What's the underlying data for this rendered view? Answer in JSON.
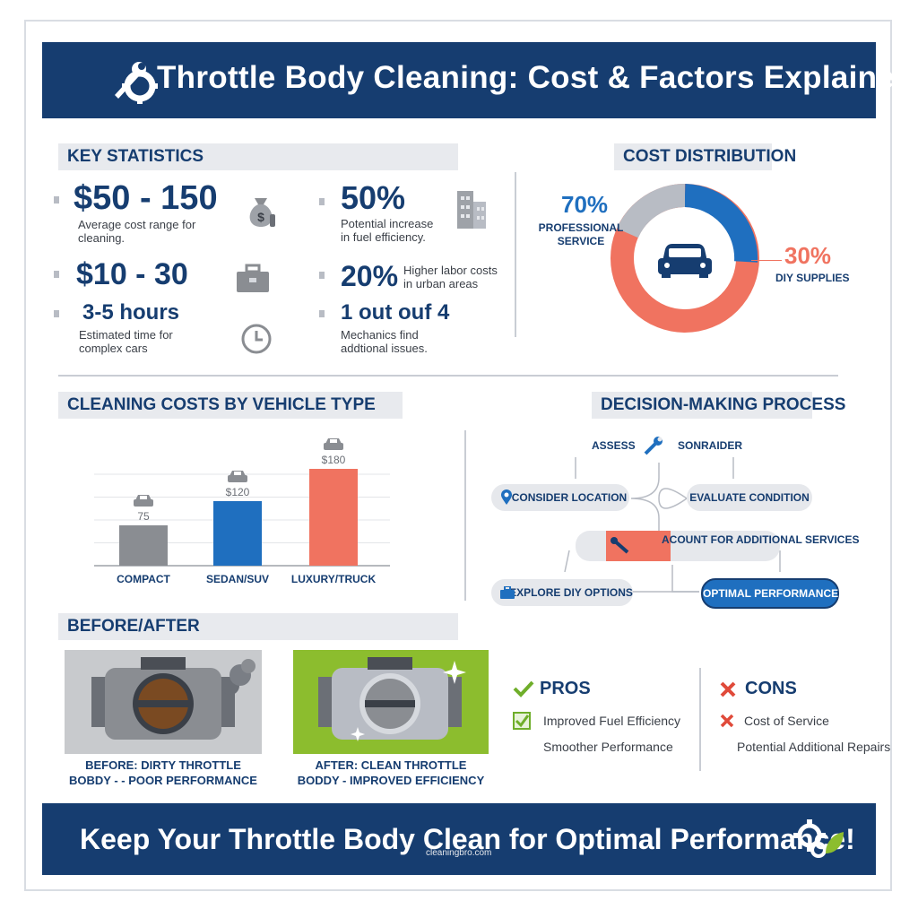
{
  "header": {
    "title": "Throttle Body Cleaning: Cost & Factors Explained!"
  },
  "key_statistics": {
    "label": "KEY STATISTICS",
    "items": [
      {
        "value": "$50 - 150",
        "desc": "Average cost range for cleaning.",
        "icon": "money-bag-icon"
      },
      {
        "value": "$10 - 30",
        "desc": "",
        "icon": "toolbox-icon"
      },
      {
        "value": "3-5 hours",
        "desc": "Estimated time for complex cars",
        "icon": "clock-icon"
      },
      {
        "value": "50%",
        "desc": "Potential increase in fuel efficiency.",
        "icon": "building-icon"
      },
      {
        "value": "20%",
        "desc": "Higher labor costs in urban areas"
      },
      {
        "value": "1 out ouf 4",
        "desc": "Mechanics find addtional issues."
      }
    ]
  },
  "cost_distribution": {
    "label": "COST DISTRIBUTION",
    "professional_pct": "70%",
    "professional_label": "PROFESSIONAL SERVICE",
    "diy_pct": "30%",
    "diy_label": "DIY SUPPLIES"
  },
  "chart_data": {
    "type": "bar",
    "title": "CLEANING COSTS BY VEHICLE TYPE",
    "categories": [
      "COMPACT",
      "SEDAN/SUV",
      "LUXURY/TRUCK"
    ],
    "values": [
      75,
      120,
      180
    ],
    "value_labels": [
      "75",
      "$120",
      "$180"
    ],
    "colors": [
      "#8a8d92",
      "#1f6fbf",
      "#f07360"
    ],
    "ylim": [
      0,
      200
    ],
    "grid": true
  },
  "decision": {
    "label": "DECISION-MAKING PROCESS",
    "assess": "ASSESS",
    "consider": "SONRAIDER",
    "location": "CONSIDER LOCATION",
    "evaluate": "EVALUATE CONDITION",
    "account": "ACOUNT FOR ADDITIONAL SERVICES",
    "explore": "EXPLORE DIY OPTIONS",
    "optimal": "OPTIMAL PERFORMANCE"
  },
  "before_after": {
    "label": "BEFORE/AFTER",
    "before_caption": "BEFORE: DIRTY THROTTLE BOBDY - - POOR PERFORMANCE",
    "after_caption": "AFTER: CLEAN THROTTLE BODDY - IMPROVED EFFICIENCY"
  },
  "pros": {
    "title": "PROS",
    "items": [
      "Improved Fuel Efficiency",
      "Smoother Performance"
    ]
  },
  "cons": {
    "title": "CONS",
    "items": [
      "Cost of Service",
      "Potential Additional Repairs"
    ]
  },
  "footer": {
    "text": "Keep Your Throttle Body Clean for Optimal Performance!",
    "url": "cleaningbro.com"
  },
  "colors": {
    "navy": "#163d70",
    "blue": "#1f6fbf",
    "coral": "#f07360",
    "gray": "#b8bcc4",
    "green": "#8cbd2e"
  }
}
